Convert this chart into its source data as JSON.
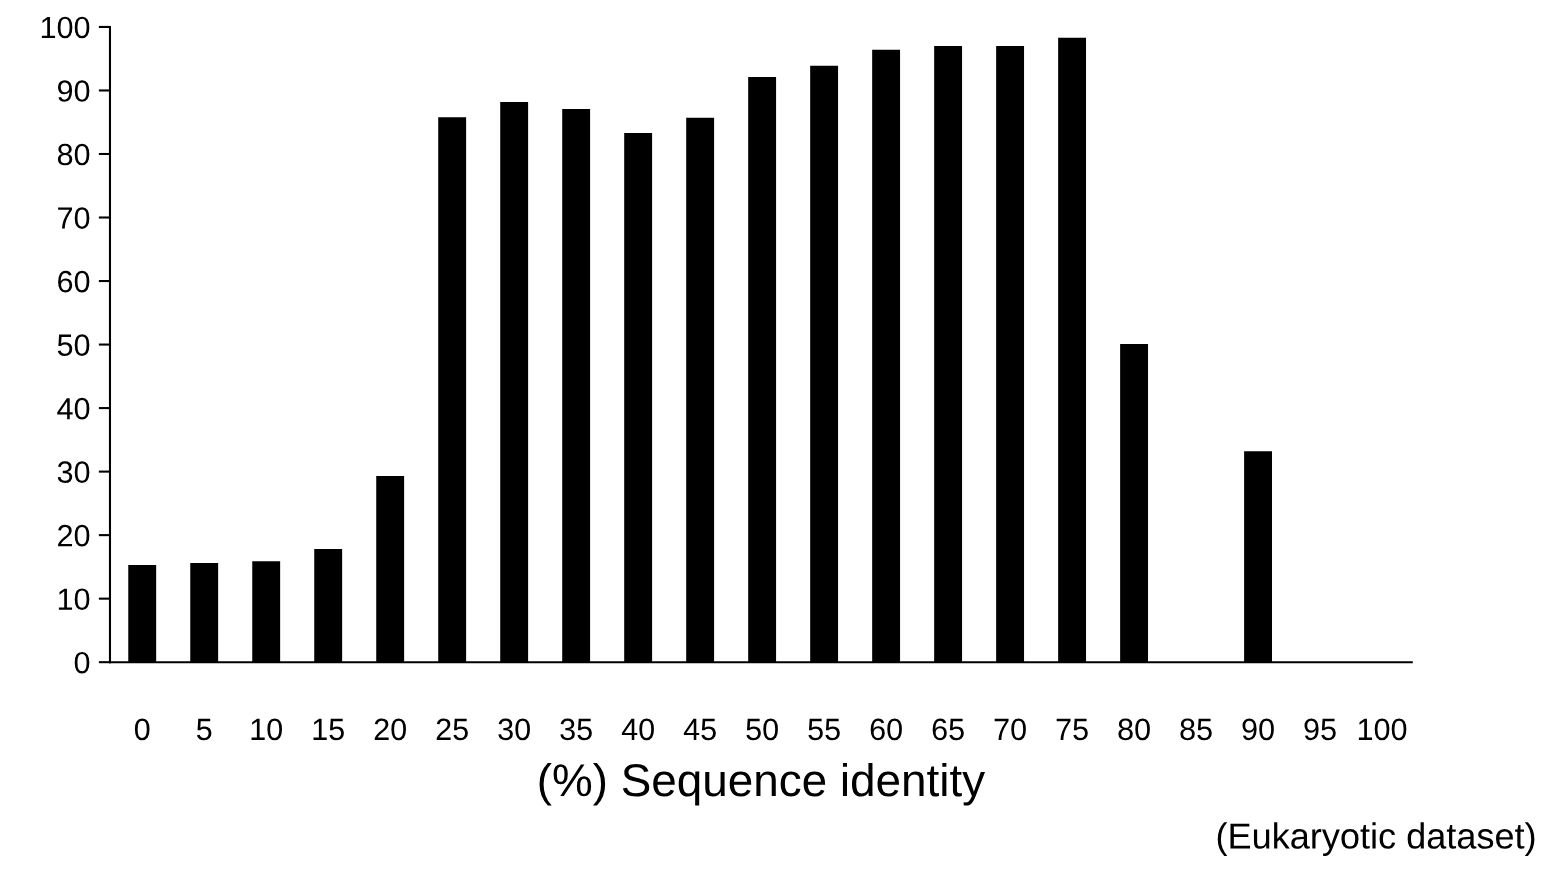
{
  "chart_data": {
    "type": "bar",
    "xlabel": "(%) Sequence identity",
    "categories": [
      "0",
      "5",
      "10",
      "15",
      "20",
      "25",
      "30",
      "35",
      "40",
      "45",
      "50",
      "55",
      "60",
      "65",
      "70",
      "75",
      "80",
      "85",
      "90",
      "95",
      "100"
    ],
    "values": [
      15.3,
      15.6,
      15.9,
      17.8,
      29.3,
      85.8,
      88.2,
      87.1,
      83.3,
      85.7,
      92.1,
      93.9,
      96.4,
      97.0,
      97.0,
      98.3,
      50.1,
      0,
      33.2,
      0,
      0
    ],
    "color": "#000000",
    "ylim": [
      0,
      100
    ],
    "yticks": [
      0,
      10,
      20,
      30,
      40,
      50,
      60,
      70,
      80,
      90,
      100
    ],
    "grid": false,
    "legend": false,
    "annotations": [
      "(Eukaryotic dataset)"
    ]
  }
}
